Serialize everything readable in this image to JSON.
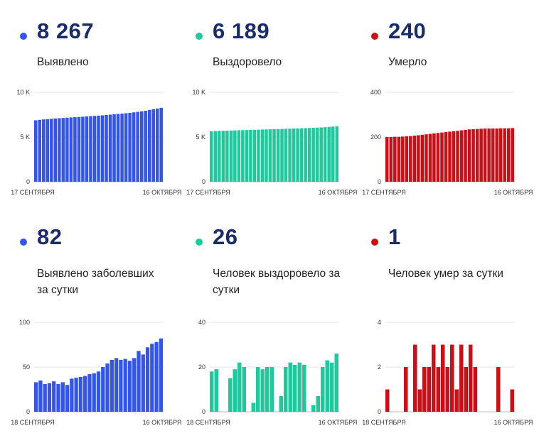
{
  "colors": {
    "blue": "#3355ee",
    "green": "#1ec99b",
    "red": "#cc0e16",
    "number": "#1a2b6b"
  },
  "panels": [
    {
      "number": "8 267",
      "label": "Выявлено",
      "color": "#3355ee",
      "chart_data": {
        "type": "bar",
        "yticks": [
          "10 K",
          "5 K",
          "0"
        ],
        "ylim": [
          0,
          10000
        ],
        "xstart": "17 СЕНТЯБРЯ",
        "xend": "16 ОКТЯБРЯ",
        "values": [
          6870,
          6920,
          6970,
          7000,
          7040,
          7070,
          7100,
          7130,
          7160,
          7190,
          7220,
          7240,
          7270,
          7300,
          7330,
          7360,
          7390,
          7420,
          7460,
          7500,
          7540,
          7580,
          7620,
          7660,
          7700,
          7760,
          7810,
          7870,
          7940,
          8030,
          8110,
          8185,
          8267
        ]
      }
    },
    {
      "number": "6 189",
      "label": "Выздоровело",
      "color": "#1ec99b",
      "chart_data": {
        "type": "bar",
        "yticks": [
          "10 K",
          "5 K",
          "0"
        ],
        "ylim": [
          0,
          10000
        ],
        "xstart": "17 СЕНТЯБРЯ",
        "xend": "16 ОКТЯБРЯ",
        "values": [
          5650,
          5670,
          5690,
          5700,
          5710,
          5730,
          5740,
          5760,
          5770,
          5780,
          5800,
          5810,
          5820,
          5840,
          5850,
          5860,
          5880,
          5890,
          5900,
          5920,
          5930,
          5950,
          5960,
          5980,
          5990,
          6010,
          6030,
          6050,
          6070,
          6100,
          6130,
          6163,
          6189
        ]
      }
    },
    {
      "number": "240",
      "label": "Умерло",
      "color": "#cc0e16",
      "chart_data": {
        "type": "bar",
        "yticks": [
          "400",
          "200",
          "0"
        ],
        "ylim": [
          0,
          400
        ],
        "xstart": "17 СЕНТЯБРЯ",
        "xend": "16 ОКТЯБРЯ",
        "values": [
          200,
          200,
          201,
          201,
          202,
          203,
          204,
          206,
          208,
          210,
          212,
          214,
          216,
          218,
          220,
          222,
          224,
          226,
          228,
          230,
          232,
          234,
          235,
          236,
          237,
          238,
          238,
          238,
          238,
          239,
          239,
          239,
          240
        ]
      }
    },
    {
      "number": "82",
      "label": "Выявлено заболевших за сутки",
      "color": "#3355ee",
      "chart_data": {
        "type": "bar",
        "yticks": [
          "100",
          "50",
          "0"
        ],
        "ylim": [
          0,
          100
        ],
        "xstart": "18 СЕНТЯБРЯ",
        "xend": "16 ОКТЯБРЯ",
        "values": [
          33,
          35,
          31,
          32,
          34,
          31,
          33,
          30,
          37,
          38,
          39,
          40,
          42,
          43,
          45,
          50,
          54,
          58,
          60,
          58,
          59,
          57,
          60,
          68,
          64,
          72,
          76,
          78,
          82
        ]
      }
    },
    {
      "number": "26",
      "label": "Человек выздоровело за сутки",
      "color": "#1ec99b",
      "chart_data": {
        "type": "bar",
        "yticks": [
          "40",
          "20",
          "0"
        ],
        "ylim": [
          0,
          40
        ],
        "xstart": "18 СЕНТЯБРЯ",
        "xend": "16 ОКТЯБРЯ",
        "values": [
          18,
          19,
          0,
          0,
          15,
          19,
          22,
          20,
          0,
          4,
          20,
          19,
          20,
          20,
          0,
          7,
          20,
          22,
          21,
          22,
          21,
          0,
          3,
          7,
          20,
          23,
          22,
          26
        ]
      }
    },
    {
      "number": "1",
      "label": "Человек умер за сутки",
      "color": "#cc0e16",
      "chart_data": {
        "type": "bar",
        "yticks": [
          "4",
          "2",
          "0"
        ],
        "ylim": [
          0,
          4
        ],
        "xstart": "18 СЕНТЯБРЯ",
        "xend": "16 ОКТЯБРЯ",
        "values": [
          1,
          0,
          0,
          0,
          2,
          0,
          3,
          1,
          2,
          2,
          3,
          2,
          3,
          2,
          3,
          1,
          3,
          2,
          3,
          2,
          0,
          0,
          0,
          0,
          2,
          0,
          0,
          1
        ]
      }
    }
  ]
}
